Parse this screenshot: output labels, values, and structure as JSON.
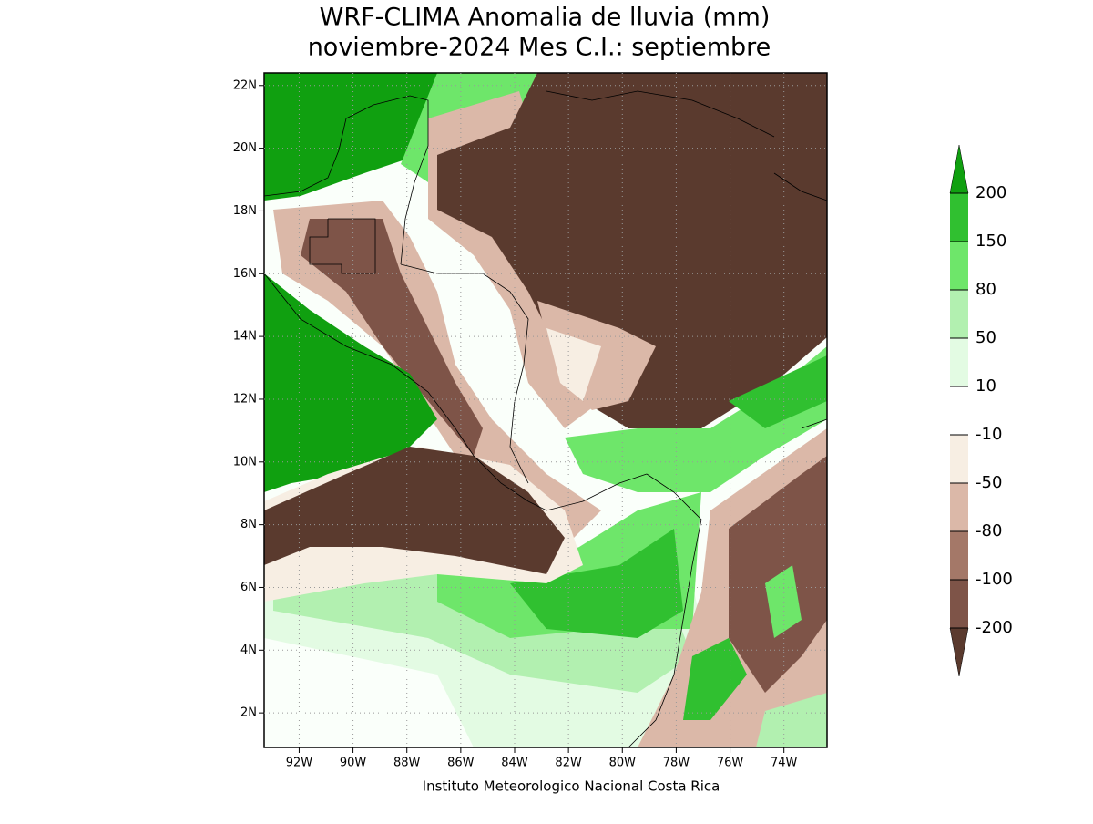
{
  "title": [
    "WRF-CLIMA Anomalia de lluvia (mm)",
    "noviembre-2024 Mes C.I.: septiembre"
  ],
  "map": {
    "lon_range": [
      -93.3,
      -72.4
    ],
    "lat_range": [
      0.9,
      22.4
    ],
    "lon_ticks": [
      {
        "value": -92,
        "label": "92W"
      },
      {
        "value": -90,
        "label": "90W"
      },
      {
        "value": -88,
        "label": "88W"
      },
      {
        "value": -86,
        "label": "86W"
      },
      {
        "value": -84,
        "label": "84W"
      },
      {
        "value": -82,
        "label": "82W"
      },
      {
        "value": -80,
        "label": "80W"
      },
      {
        "value": -78,
        "label": "78W"
      },
      {
        "value": -76,
        "label": "76W"
      },
      {
        "value": -74,
        "label": "74W"
      }
    ],
    "lat_ticks": [
      {
        "value": 2,
        "label": "2N"
      },
      {
        "value": 4,
        "label": "4N"
      },
      {
        "value": 6,
        "label": "6N"
      },
      {
        "value": 8,
        "label": "8N"
      },
      {
        "value": 10,
        "label": "10N"
      },
      {
        "value": 12,
        "label": "12N"
      },
      {
        "value": 14,
        "label": "14N"
      },
      {
        "value": 16,
        "label": "16N"
      },
      {
        "value": 18,
        "label": "18N"
      },
      {
        "value": 20,
        "label": "20N"
      },
      {
        "value": 22,
        "label": "22N"
      }
    ],
    "grid": true
  },
  "colorbar": {
    "levels": [
      -200,
      -100,
      -80,
      -50,
      -10,
      10,
      50,
      80,
      150,
      200
    ],
    "colors": [
      "#5a3a2e",
      "#7e5448",
      "#a47868",
      "#dbb8a8",
      "#f7eee3",
      "#ffffff",
      "#e3fbe3",
      "#b2f0b0",
      "#6ee66a",
      "#30c030",
      "#10a010"
    ]
  },
  "footer": "Instituto Meteorologico Nacional Costa Rica"
}
